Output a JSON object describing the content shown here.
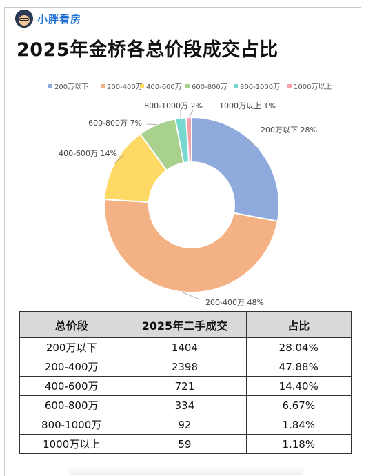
{
  "brand": {
    "name": "小胖看房"
  },
  "page_title": "2025年金桥各总价段成交占比",
  "chart_data": {
    "type": "pie",
    "variant": "donut",
    "title": "",
    "legend_position": "top",
    "categories": [
      "200万以下",
      "200-400万",
      "400-600万",
      "600-800万",
      "800-1000万",
      "1000万以上"
    ],
    "values": [
      28,
      48,
      14,
      7,
      2,
      1
    ],
    "labels": [
      "200万以下 28%",
      "200-400万 48%",
      "400-600万 14%",
      "600-800万 7%",
      "800-1000万 2%",
      "1000万以上 1%"
    ],
    "colors": [
      "#8faadc",
      "#f4b183",
      "#ffd966",
      "#a9d18e",
      "#77d8d0",
      "#f4a0a8"
    ]
  },
  "table": {
    "headers": [
      "总价段",
      "2025年二手成交",
      "占比"
    ],
    "rows": [
      [
        "200万以下",
        "1404",
        "28.04%"
      ],
      [
        "200-400万",
        "2398",
        "47.88%"
      ],
      [
        "400-600万",
        "721",
        "14.40%"
      ],
      [
        "600-800万",
        "334",
        "6.67%"
      ],
      [
        "800-1000万",
        "92",
        "1.84%"
      ],
      [
        "1000万以上",
        "59",
        "1.18%"
      ]
    ]
  }
}
